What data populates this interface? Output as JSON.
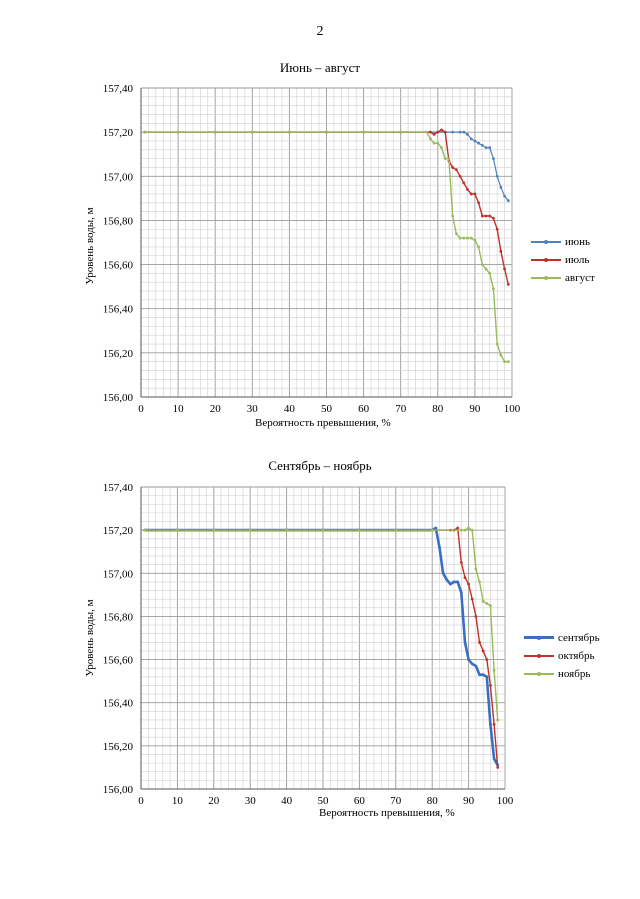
{
  "page_number": "2",
  "chart_data": [
    {
      "type": "line",
      "title": "Июнь – август",
      "xlabel": "Вероятность превышения, %",
      "ylabel": "Уровень воды, м",
      "xlim": [
        0,
        100
      ],
      "ylim": [
        156.0,
        157.4
      ],
      "x_ticks": [
        "0",
        "10",
        "20",
        "30",
        "40",
        "50",
        "60",
        "70",
        "80",
        "90",
        "100"
      ],
      "y_ticks": [
        "156,00",
        "156,20",
        "156,40",
        "156,60",
        "156,80",
        "157,00",
        "157,20",
        "157,40"
      ],
      "grid": true,
      "legend_position": "right",
      "series": [
        {
          "name": "июнь",
          "color": "#4f81bd",
          "line_width": 1.2,
          "x": [
            1,
            10,
            20,
            30,
            40,
            50,
            60,
            70,
            78,
            80,
            82,
            84,
            86,
            87,
            88,
            89,
            90,
            91,
            92,
            93,
            94,
            95,
            96,
            97,
            98,
            99
          ],
          "y": [
            157.2,
            157.2,
            157.2,
            157.2,
            157.2,
            157.2,
            157.2,
            157.2,
            157.2,
            157.2,
            157.2,
            157.2,
            157.2,
            157.2,
            157.19,
            157.17,
            157.16,
            157.15,
            157.14,
            157.13,
            157.13,
            157.08,
            157.0,
            156.95,
            156.91,
            156.89
          ]
        },
        {
          "name": "июль",
          "color": "#c0312b",
          "line_width": 1.4,
          "x": [
            1,
            10,
            20,
            30,
            40,
            50,
            60,
            70,
            78,
            79,
            80,
            81,
            82,
            83,
            84,
            85,
            86,
            87,
            88,
            89,
            90,
            91,
            92,
            93,
            94,
            95,
            96,
            97,
            98,
            99
          ],
          "y": [
            157.2,
            157.2,
            157.2,
            157.2,
            157.2,
            157.2,
            157.2,
            157.2,
            157.2,
            157.19,
            157.2,
            157.21,
            157.2,
            157.07,
            157.04,
            157.03,
            157.0,
            156.97,
            156.94,
            156.92,
            156.92,
            156.88,
            156.82,
            156.82,
            156.82,
            156.81,
            156.76,
            156.66,
            156.58,
            156.51
          ]
        },
        {
          "name": "август",
          "color": "#9bbb59",
          "line_width": 1.4,
          "x": [
            1,
            10,
            20,
            30,
            40,
            50,
            60,
            70,
            77,
            78,
            79,
            80,
            81,
            82,
            83,
            84,
            85,
            86,
            87,
            88,
            89,
            90,
            91,
            92,
            93,
            94,
            95,
            96,
            97,
            98,
            99
          ],
          "y": [
            157.2,
            157.2,
            157.2,
            157.2,
            157.2,
            157.2,
            157.2,
            157.2,
            157.2,
            157.17,
            157.15,
            157.15,
            157.13,
            157.08,
            157.08,
            156.82,
            156.74,
            156.72,
            156.72,
            156.72,
            156.72,
            156.71,
            156.68,
            156.6,
            156.58,
            156.56,
            156.49,
            156.24,
            156.19,
            156.16,
            156.16
          ]
        }
      ]
    },
    {
      "type": "line",
      "title": "Сентябрь – ноябрь",
      "xlabel": "Вероятность превышения, %",
      "ylabel": "Уровень воды, м",
      "xlim": [
        0,
        100
      ],
      "ylim": [
        156.0,
        157.4
      ],
      "x_ticks": [
        "0",
        "10",
        "20",
        "30",
        "40",
        "50",
        "60",
        "70",
        "80",
        "90",
        "100"
      ],
      "y_ticks": [
        "156,00",
        "156,20",
        "156,40",
        "156,60",
        "156,80",
        "157,00",
        "157,20",
        "157,40"
      ],
      "grid": true,
      "legend_position": "right",
      "series": [
        {
          "name": "сентябрь",
          "color": "#3a6fc4",
          "line_width": 2.6,
          "x": [
            1,
            10,
            20,
            30,
            40,
            50,
            60,
            70,
            80,
            81,
            82,
            83,
            84,
            85,
            86,
            87,
            88,
            89,
            90,
            91,
            92,
            93,
            94,
            95,
            96,
            97,
            98
          ],
          "y": [
            157.2,
            157.2,
            157.2,
            157.2,
            157.2,
            157.2,
            157.2,
            157.2,
            157.2,
            157.21,
            157.12,
            157.0,
            156.97,
            156.95,
            156.96,
            156.96,
            156.91,
            156.68,
            156.6,
            156.58,
            156.57,
            156.53,
            156.53,
            156.52,
            156.3,
            156.14,
            156.11
          ]
        },
        {
          "name": "октябрь",
          "color": "#c0312b",
          "line_width": 1.4,
          "x": [
            1,
            10,
            20,
            30,
            40,
            50,
            60,
            70,
            80,
            85,
            86,
            87,
            88,
            89,
            90,
            91,
            92,
            93,
            94,
            95,
            96,
            97,
            98
          ],
          "y": [
            157.2,
            157.2,
            157.2,
            157.2,
            157.2,
            157.2,
            157.2,
            157.2,
            157.2,
            157.2,
            157.2,
            157.21,
            157.05,
            156.98,
            156.95,
            156.88,
            156.8,
            156.68,
            156.64,
            156.6,
            156.48,
            156.3,
            156.1
          ]
        },
        {
          "name": "ноябрь",
          "color": "#9bbb59",
          "line_width": 1.4,
          "x": [
            1,
            10,
            20,
            30,
            40,
            50,
            60,
            70,
            80,
            88,
            89,
            90,
            91,
            92,
            93,
            94,
            95,
            96,
            97,
            98
          ],
          "y": [
            157.2,
            157.2,
            157.2,
            157.2,
            157.2,
            157.2,
            157.2,
            157.2,
            157.2,
            157.2,
            157.2,
            157.21,
            157.2,
            157.02,
            156.96,
            156.87,
            156.86,
            156.85,
            156.55,
            156.32
          ]
        }
      ]
    }
  ]
}
